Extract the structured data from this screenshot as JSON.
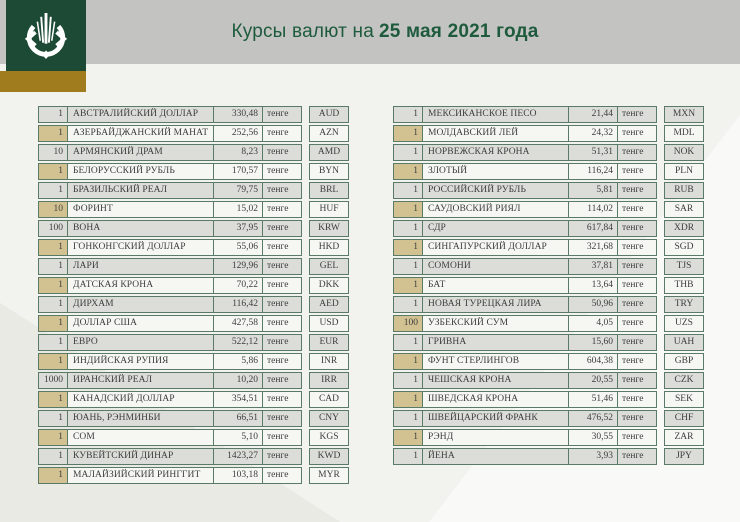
{
  "header": {
    "title_prefix": "Курсы валют на",
    "title_date": "25 мая 2021 года",
    "logo_icon": "national-bank-kazakhstan-emblem",
    "colors": {
      "band_gray": "#c3c3c2",
      "title_green": "#1e5b3c",
      "logo_green": "#1d4a34",
      "accent_gold": "#a07c1e"
    }
  },
  "table": {
    "unit_label": "тенге",
    "columns": [
      "quantity",
      "currency_name",
      "rate",
      "unit",
      "code"
    ],
    "colors": {
      "border_green": "#587a66",
      "row_gray": "#dcdcd9",
      "row_light": "#f6f6f3",
      "quantity_accent_tan": "#d3c291",
      "text": "#3d3d3d"
    },
    "left_rows": [
      {
        "qty": "1",
        "name": "АВСТРАЛИЙСКИЙ ДОЛЛАР",
        "rate": "330,48",
        "code": "AUD"
      },
      {
        "qty": "1",
        "name": "АЗЕРБАЙДЖАНСКИЙ МАНАТ",
        "rate": "252,56",
        "code": "AZN"
      },
      {
        "qty": "10",
        "name": "АРМЯНСКИЙ ДРАМ",
        "rate": "8,23",
        "code": "AMD"
      },
      {
        "qty": "1",
        "name": "БЕЛОРУССКИЙ РУБЛЬ",
        "rate": "170,57",
        "code": "BYN"
      },
      {
        "qty": "1",
        "name": "БРАЗИЛЬСКИЙ РЕАЛ",
        "rate": "79,75",
        "code": "BRL"
      },
      {
        "qty": "10",
        "name": "ФОРИНТ",
        "rate": "15,02",
        "code": "HUF"
      },
      {
        "qty": "100",
        "name": "ВОНА",
        "rate": "37,95",
        "code": "KRW"
      },
      {
        "qty": "1",
        "name": "ГОНКОНГСКИЙ ДОЛЛАР",
        "rate": "55,06",
        "code": "HKD"
      },
      {
        "qty": "1",
        "name": "ЛАРИ",
        "rate": "129,96",
        "code": "GEL"
      },
      {
        "qty": "1",
        "name": "ДАТСКАЯ КРОНА",
        "rate": "70,22",
        "code": "DKK"
      },
      {
        "qty": "1",
        "name": "ДИРХАМ",
        "rate": "116,42",
        "code": "AED"
      },
      {
        "qty": "1",
        "name": "ДОЛЛАР США",
        "rate": "427,58",
        "code": "USD"
      },
      {
        "qty": "1",
        "name": "ЕВРО",
        "rate": "522,12",
        "code": "EUR"
      },
      {
        "qty": "1",
        "name": "ИНДИЙСКАЯ РУПИЯ",
        "rate": "5,86",
        "code": "INR"
      },
      {
        "qty": "1000",
        "name": "ИРАНСКИЙ РЕАЛ",
        "rate": "10,20",
        "code": "IRR"
      },
      {
        "qty": "1",
        "name": "КАНАДСКИЙ ДОЛЛАР",
        "rate": "354,51",
        "code": "CAD"
      },
      {
        "qty": "1",
        "name": "ЮАНЬ, РЭНМИНБИ",
        "rate": "66,51",
        "code": "CNY"
      },
      {
        "qty": "1",
        "name": "СОМ",
        "rate": "5,10",
        "code": "KGS"
      },
      {
        "qty": "1",
        "name": "КУВЕЙТСКИЙ ДИНАР",
        "rate": "1423,27",
        "code": "KWD"
      },
      {
        "qty": "1",
        "name": "МАЛАЙЗИЙСКИЙ РИНГГИТ",
        "rate": "103,18",
        "code": "MYR"
      }
    ],
    "right_rows": [
      {
        "qty": "1",
        "name": "МЕКСИКАНСКОЕ ПЕСО",
        "rate": "21,44",
        "code": "MXN"
      },
      {
        "qty": "1",
        "name": "МОЛДАВСКИЙ ЛЕЙ",
        "rate": "24,32",
        "code": "MDL"
      },
      {
        "qty": "1",
        "name": "НОРВЕЖСКАЯ КРОНА",
        "rate": "51,31",
        "code": "NOK"
      },
      {
        "qty": "1",
        "name": "ЗЛОТЫЙ",
        "rate": "116,24",
        "code": "PLN"
      },
      {
        "qty": "1",
        "name": "РОССИЙСКИЙ РУБЛЬ",
        "rate": "5,81",
        "code": "RUB"
      },
      {
        "qty": "1",
        "name": "САУДОВСКИЙ РИЯЛ",
        "rate": "114,02",
        "code": "SAR"
      },
      {
        "qty": "1",
        "name": "СДР",
        "rate": "617,84",
        "code": "XDR"
      },
      {
        "qty": "1",
        "name": "СИНГАПУРСКИЙ ДОЛЛАР",
        "rate": "321,68",
        "code": "SGD"
      },
      {
        "qty": "1",
        "name": "СОМОНИ",
        "rate": "37,81",
        "code": "TJS"
      },
      {
        "qty": "1",
        "name": "БАТ",
        "rate": "13,64",
        "code": "THB"
      },
      {
        "qty": "1",
        "name": "НОВАЯ ТУРЕЦКАЯ ЛИРА",
        "rate": "50,96",
        "code": "TRY"
      },
      {
        "qty": "100",
        "name": "УЗБЕКСКИЙ СУМ",
        "rate": "4,05",
        "code": "UZS"
      },
      {
        "qty": "1",
        "name": "ГРИВНА",
        "rate": "15,60",
        "code": "UAH"
      },
      {
        "qty": "1",
        "name": "ФУНТ СТЕРЛИНГОВ",
        "rate": "604,38",
        "code": "GBP"
      },
      {
        "qty": "1",
        "name": "ЧЕШСКАЯ КРОНА",
        "rate": "20,55",
        "code": "CZK"
      },
      {
        "qty": "1",
        "name": "ШВЕДСКАЯ КРОНА",
        "rate": "51,46",
        "code": "SEK"
      },
      {
        "qty": "1",
        "name": "ШВЕЙЦАРСКИЙ ФРАНК",
        "rate": "476,52",
        "code": "CHF"
      },
      {
        "qty": "1",
        "name": "РЭНД",
        "rate": "30,55",
        "code": "ZAR"
      },
      {
        "qty": "1",
        "name": "ЙЕНА",
        "rate": "3,93",
        "code": "JPY"
      }
    ]
  }
}
